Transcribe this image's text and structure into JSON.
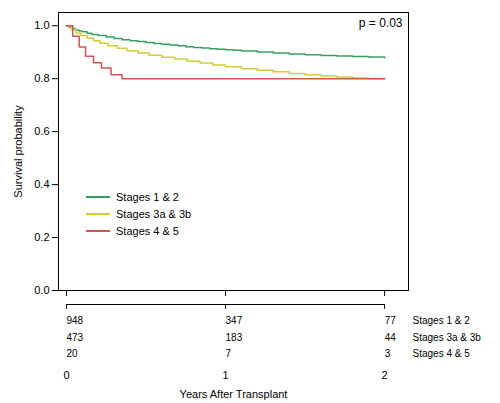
{
  "chart_data": {
    "type": "step",
    "xlabel": "Years After Transplant",
    "ylabel": "Survival probability",
    "annotation": "p = 0.03",
    "xlim": [
      -0.05,
      2.15
    ],
    "ylim": [
      0.0,
      1.05
    ],
    "xticks": [
      0,
      1,
      2
    ],
    "yticks": [
      {
        "value": 0,
        "label": "0.0"
      },
      0.2,
      0.4,
      0.6,
      0.8,
      {
        "value": 1,
        "label": "1.0"
      }
    ],
    "legend": "lower left",
    "series": [
      {
        "name": "Stages 1 & 2",
        "color": "#3a9e5f",
        "x": [
          0.0,
          0.02,
          0.04,
          0.06,
          0.08,
          0.1,
          0.13,
          0.16,
          0.2,
          0.25,
          0.3,
          0.35,
          0.4,
          0.45,
          0.5,
          0.55,
          0.6,
          0.65,
          0.7,
          0.75,
          0.8,
          0.85,
          0.9,
          0.95,
          1.0,
          1.05,
          1.1,
          1.2,
          1.3,
          1.4,
          1.5,
          1.6,
          1.7,
          1.8,
          1.9,
          2.0
        ],
        "values": [
          1.0,
          0.993,
          0.988,
          0.983,
          0.98,
          0.977,
          0.972,
          0.967,
          0.963,
          0.957,
          0.952,
          0.947,
          0.943,
          0.94,
          0.937,
          0.933,
          0.93,
          0.927,
          0.924,
          0.921,
          0.918,
          0.916,
          0.913,
          0.911,
          0.909,
          0.907,
          0.905,
          0.901,
          0.897,
          0.893,
          0.89,
          0.888,
          0.886,
          0.884,
          0.882,
          0.879
        ]
      },
      {
        "name": "Stages 3a & 3b",
        "color": "#d4cc3a",
        "x": [
          0.0,
          0.03,
          0.06,
          0.09,
          0.13,
          0.17,
          0.21,
          0.26,
          0.32,
          0.38,
          0.45,
          0.52,
          0.6,
          0.68,
          0.76,
          0.84,
          0.92,
          1.0,
          1.1,
          1.2,
          1.3,
          1.4,
          1.5,
          1.6,
          1.7,
          1.8,
          1.9,
          2.0
        ],
        "values": [
          1.0,
          0.985,
          0.973,
          0.963,
          0.953,
          0.943,
          0.934,
          0.924,
          0.915,
          0.906,
          0.897,
          0.889,
          0.881,
          0.874,
          0.866,
          0.859,
          0.852,
          0.845,
          0.838,
          0.832,
          0.826,
          0.82,
          0.815,
          0.81,
          0.806,
          0.803,
          0.801,
          0.8
        ]
      },
      {
        "name": "Stages 4 & 5",
        "color": "#cd5555",
        "x": [
          0.0,
          0.04,
          0.08,
          0.12,
          0.17,
          0.22,
          0.28,
          0.35,
          2.0
        ],
        "values": [
          1.0,
          0.96,
          0.92,
          0.885,
          0.86,
          0.84,
          0.815,
          0.8,
          0.8
        ]
      }
    ],
    "at_risk": {
      "times": [
        0,
        1,
        2
      ],
      "rows": [
        {
          "label": "Stages 1 & 2",
          "counts": [
            948,
            347,
            77
          ]
        },
        {
          "label": "Stages 3a & 3b",
          "counts": [
            473,
            183,
            44
          ]
        },
        {
          "label": "Stages 4 & 5",
          "counts": [
            20,
            7,
            3
          ]
        }
      ]
    }
  }
}
